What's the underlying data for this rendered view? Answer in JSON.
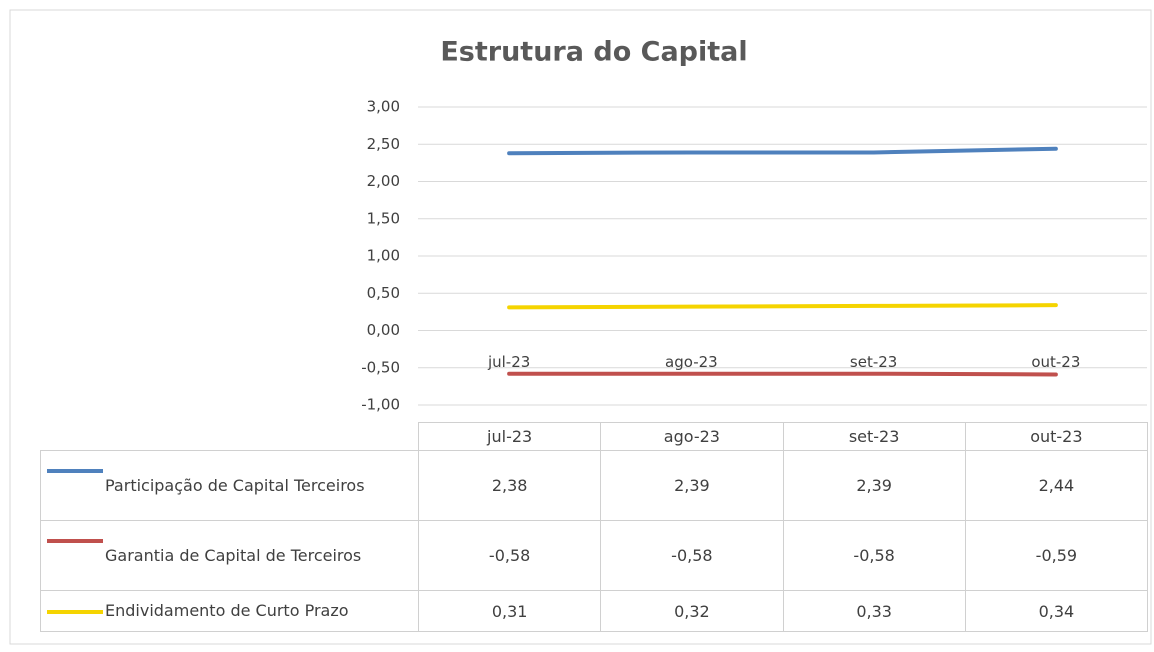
{
  "chart_data": {
    "type": "line",
    "title": "Estrutura do Capital",
    "categories": [
      "jul-23",
      "ago-23",
      "set-23",
      "out-23"
    ],
    "series": [
      {
        "name": "Participação de Capital Terceiros",
        "color": "#4f81bd",
        "values": [
          2.38,
          2.39,
          2.39,
          2.44
        ],
        "value_labels": [
          "2,38",
          "2,39",
          "2,39",
          "2,44"
        ]
      },
      {
        "name": "Garantia de Capital de Terceiros",
        "color": "#c0504d",
        "values": [
          -0.58,
          -0.58,
          -0.58,
          -0.59
        ],
        "value_labels": [
          "-0,58",
          "-0,58",
          "-0,58",
          "-0,59"
        ]
      },
      {
        "name": "Endividamento de Curto Prazo",
        "color": "#f5d400",
        "values": [
          0.31,
          0.32,
          0.33,
          0.34
        ],
        "value_labels": [
          "0,31",
          "0,32",
          "0,33",
          "0,34"
        ]
      }
    ],
    "ylim": [
      -1,
      3
    ],
    "yticks": [
      {
        "value": -1,
        "label": "-1,00"
      },
      {
        "value": -0.5,
        "label": "-0,50"
      },
      {
        "value": 0,
        "label": "0,00"
      },
      {
        "value": 0.5,
        "label": "0,50"
      },
      {
        "value": 1,
        "label": "1,00"
      },
      {
        "value": 1.5,
        "label": "1,50"
      },
      {
        "value": 2,
        "label": "2,00"
      },
      {
        "value": 2.5,
        "label": "2,50"
      },
      {
        "value": 3,
        "label": "3,00"
      }
    ],
    "grid": true
  }
}
